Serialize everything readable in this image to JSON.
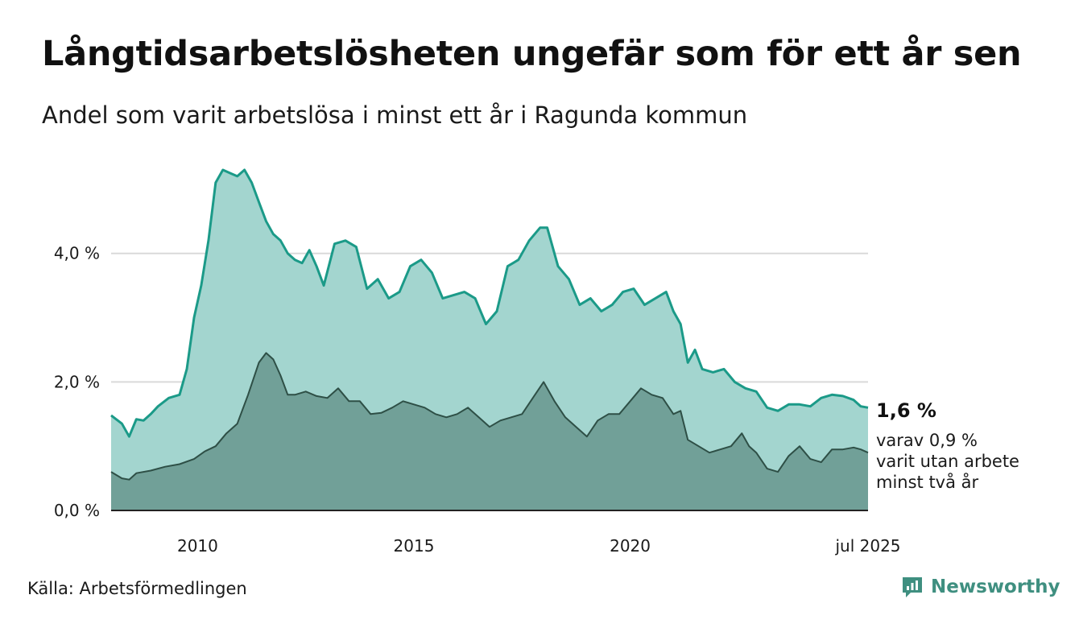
{
  "title": "Långtidsarbetslösheten ungefär som för ett år sen",
  "subtitle": "Andel som varit arbetslösa i minst ett år i Ragunda kommun",
  "source": "Källa: Arbetsförmedlingen",
  "brand": "Newsworthy",
  "colors": {
    "total_line": "#1b9a88",
    "total_fill": "#a3d5cf",
    "long_line": "#2e4f46",
    "long_fill": "#71a098",
    "grid": "#d9d9d9"
  },
  "chart_data": {
    "type": "area",
    "ylim": [
      0,
      5.5
    ],
    "yticks": [
      {
        "value": 0,
        "label": "0,0 %"
      },
      {
        "value": 2,
        "label": "2,0 %"
      },
      {
        "value": 4,
        "label": "4,0 %"
      }
    ],
    "xlim": [
      "2008-01",
      "2025-07"
    ],
    "xticks": [
      {
        "value": "2010-01",
        "label": "2010"
      },
      {
        "value": "2015-01",
        "label": "2015"
      },
      {
        "value": "2020-01",
        "label": "2020"
      },
      {
        "value": "2025-07",
        "label": "jul 2025"
      }
    ],
    "series": [
      {
        "key": "total",
        "points": [
          [
            "2008-01",
            1.48
          ],
          [
            "2008-04",
            1.35
          ],
          [
            "2008-06",
            1.15
          ],
          [
            "2008-08",
            1.42
          ],
          [
            "2008-10",
            1.4
          ],
          [
            "2008-12",
            1.5
          ],
          [
            "2009-02",
            1.62
          ],
          [
            "2009-05",
            1.75
          ],
          [
            "2009-08",
            1.8
          ],
          [
            "2009-10",
            2.2
          ],
          [
            "2009-12",
            3.0
          ],
          [
            "2010-02",
            3.5
          ],
          [
            "2010-04",
            4.2
          ],
          [
            "2010-06",
            5.1
          ],
          [
            "2010-08",
            5.3
          ],
          [
            "2010-10",
            5.25
          ],
          [
            "2010-12",
            5.2
          ],
          [
            "2011-02",
            5.3
          ],
          [
            "2011-04",
            5.1
          ],
          [
            "2011-06",
            4.8
          ],
          [
            "2011-08",
            4.5
          ],
          [
            "2011-10",
            4.3
          ],
          [
            "2011-12",
            4.2
          ],
          [
            "2012-02",
            4.0
          ],
          [
            "2012-04",
            3.9
          ],
          [
            "2012-06",
            3.85
          ],
          [
            "2012-08",
            4.05
          ],
          [
            "2012-10",
            3.8
          ],
          [
            "2012-12",
            3.5
          ],
          [
            "2013-03",
            4.15
          ],
          [
            "2013-06",
            4.2
          ],
          [
            "2013-09",
            4.1
          ],
          [
            "2013-12",
            3.45
          ],
          [
            "2014-03",
            3.6
          ],
          [
            "2014-06",
            3.3
          ],
          [
            "2014-09",
            3.4
          ],
          [
            "2014-12",
            3.8
          ],
          [
            "2015-03",
            3.9
          ],
          [
            "2015-06",
            3.7
          ],
          [
            "2015-09",
            3.3
          ],
          [
            "2015-12",
            3.35
          ],
          [
            "2016-03",
            3.4
          ],
          [
            "2016-06",
            3.3
          ],
          [
            "2016-09",
            2.9
          ],
          [
            "2016-12",
            3.1
          ],
          [
            "2017-03",
            3.8
          ],
          [
            "2017-06",
            3.9
          ],
          [
            "2017-09",
            4.2
          ],
          [
            "2017-12",
            4.4
          ],
          [
            "2018-02",
            4.4
          ],
          [
            "2018-05",
            3.8
          ],
          [
            "2018-08",
            3.6
          ],
          [
            "2018-11",
            3.2
          ],
          [
            "2019-02",
            3.3
          ],
          [
            "2019-05",
            3.1
          ],
          [
            "2019-08",
            3.2
          ],
          [
            "2019-11",
            3.4
          ],
          [
            "2020-02",
            3.45
          ],
          [
            "2020-05",
            3.2
          ],
          [
            "2020-08",
            3.3
          ],
          [
            "2020-11",
            3.4
          ],
          [
            "2021-01",
            3.1
          ],
          [
            "2021-03",
            2.9
          ],
          [
            "2021-05",
            2.3
          ],
          [
            "2021-07",
            2.5
          ],
          [
            "2021-09",
            2.2
          ],
          [
            "2021-12",
            2.15
          ],
          [
            "2022-03",
            2.2
          ],
          [
            "2022-06",
            2.0
          ],
          [
            "2022-09",
            1.9
          ],
          [
            "2022-12",
            1.85
          ],
          [
            "2023-03",
            1.6
          ],
          [
            "2023-06",
            1.55
          ],
          [
            "2023-09",
            1.65
          ],
          [
            "2023-12",
            1.65
          ],
          [
            "2024-03",
            1.62
          ],
          [
            "2024-06",
            1.75
          ],
          [
            "2024-09",
            1.8
          ],
          [
            "2024-12",
            1.78
          ],
          [
            "2025-03",
            1.72
          ],
          [
            "2025-05",
            1.62
          ],
          [
            "2025-07",
            1.6
          ]
        ]
      },
      {
        "key": "long",
        "points": [
          [
            "2008-01",
            0.6
          ],
          [
            "2008-04",
            0.5
          ],
          [
            "2008-06",
            0.48
          ],
          [
            "2008-08",
            0.58
          ],
          [
            "2008-12",
            0.62
          ],
          [
            "2009-04",
            0.68
          ],
          [
            "2009-08",
            0.72
          ],
          [
            "2009-12",
            0.8
          ],
          [
            "2010-03",
            0.92
          ],
          [
            "2010-06",
            1.0
          ],
          [
            "2010-09",
            1.2
          ],
          [
            "2010-12",
            1.35
          ],
          [
            "2011-03",
            1.8
          ],
          [
            "2011-06",
            2.3
          ],
          [
            "2011-08",
            2.45
          ],
          [
            "2011-10",
            2.35
          ],
          [
            "2011-12",
            2.1
          ],
          [
            "2012-02",
            1.8
          ],
          [
            "2012-04",
            1.8
          ],
          [
            "2012-07",
            1.85
          ],
          [
            "2012-10",
            1.78
          ],
          [
            "2013-01",
            1.75
          ],
          [
            "2013-04",
            1.9
          ],
          [
            "2013-07",
            1.7
          ],
          [
            "2013-10",
            1.7
          ],
          [
            "2014-01",
            1.5
          ],
          [
            "2014-04",
            1.52
          ],
          [
            "2014-07",
            1.6
          ],
          [
            "2014-10",
            1.7
          ],
          [
            "2015-01",
            1.65
          ],
          [
            "2015-04",
            1.6
          ],
          [
            "2015-07",
            1.5
          ],
          [
            "2015-10",
            1.45
          ],
          [
            "2016-01",
            1.5
          ],
          [
            "2016-04",
            1.6
          ],
          [
            "2016-07",
            1.45
          ],
          [
            "2016-10",
            1.3
          ],
          [
            "2017-01",
            1.4
          ],
          [
            "2017-04",
            1.45
          ],
          [
            "2017-07",
            1.5
          ],
          [
            "2017-10",
            1.75
          ],
          [
            "2018-01",
            2.0
          ],
          [
            "2018-04",
            1.7
          ],
          [
            "2018-07",
            1.45
          ],
          [
            "2018-10",
            1.3
          ],
          [
            "2019-01",
            1.15
          ],
          [
            "2019-04",
            1.4
          ],
          [
            "2019-07",
            1.5
          ],
          [
            "2019-10",
            1.5
          ],
          [
            "2020-01",
            1.7
          ],
          [
            "2020-04",
            1.9
          ],
          [
            "2020-07",
            1.8
          ],
          [
            "2020-10",
            1.75
          ],
          [
            "2021-01",
            1.5
          ],
          [
            "2021-03",
            1.55
          ],
          [
            "2021-05",
            1.1
          ],
          [
            "2021-08",
            1.0
          ],
          [
            "2021-11",
            0.9
          ],
          [
            "2022-02",
            0.95
          ],
          [
            "2022-05",
            1.0
          ],
          [
            "2022-08",
            1.2
          ],
          [
            "2022-10",
            1.0
          ],
          [
            "2022-12",
            0.9
          ],
          [
            "2023-03",
            0.65
          ],
          [
            "2023-06",
            0.6
          ],
          [
            "2023-09",
            0.85
          ],
          [
            "2023-12",
            1.0
          ],
          [
            "2024-03",
            0.8
          ],
          [
            "2024-06",
            0.75
          ],
          [
            "2024-09",
            0.95
          ],
          [
            "2024-12",
            0.95
          ],
          [
            "2025-03",
            0.98
          ],
          [
            "2025-05",
            0.95
          ],
          [
            "2025-07",
            0.9
          ]
        ]
      }
    ],
    "annotation": {
      "value_label": "1,6 %",
      "lines": [
        "varav 0,9 %",
        "varit utan arbete",
        "minst två år"
      ]
    }
  }
}
